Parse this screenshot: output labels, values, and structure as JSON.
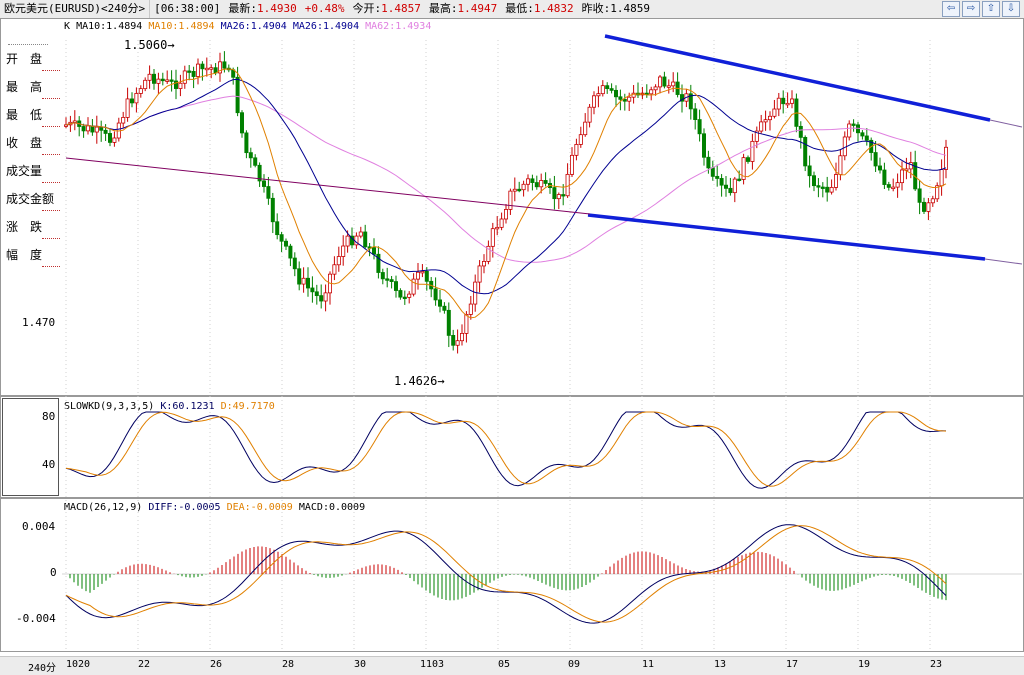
{
  "header": {
    "title": "欧元美元(EURUSD)<240分>",
    "time": "[06:38:00]",
    "latest_label": "最新:",
    "latest_value": "1.4930",
    "change": "+0.48%",
    "open_label": "今开:",
    "open_value": "1.4857",
    "high_label": "最高:",
    "high_value": "1.4947",
    "low_label": "最低:",
    "low_value": "1.4832",
    "prev_label": "昨收:",
    "prev_value": "1.4859"
  },
  "nav_icons": [
    "back-arrow-icon",
    "forward-arrow-icon",
    "up-arrow-icon",
    "down-arrow-icon"
  ],
  "left_labels": [
    "开　盘",
    "最　高",
    "最　低",
    "收　盘",
    "成交量",
    "成交金额",
    "涨　跌",
    "幅　度"
  ],
  "main_legend": {
    "k": "K",
    "ma10a": "MA10:1.4894",
    "ma10b": "MA10:1.4894",
    "ma26a": "MA26:1.4904",
    "ma26b": "MA26:1.4904",
    "ma62": "MA62:1.4934"
  },
  "annotations": {
    "high": "1.5060→",
    "low": "1.4626→",
    "price_tick": "1.470"
  },
  "kd_panel": {
    "legend_name": "SLOWKD(9,3,3,5)",
    "k": "K:60.1231",
    "d": "D:49.7170",
    "ticks": [
      "80",
      "40"
    ]
  },
  "macd_panel": {
    "legend_name": "MACD(26,12,9)",
    "diff": "DIFF:-0.0005",
    "dea": "DEA:-0.0009",
    "macd": "MACD:0.0009",
    "ticks": [
      "0.004",
      "0",
      "-0.004"
    ]
  },
  "x_axis": {
    "period": "240分",
    "dates": [
      "1020",
      "22",
      "26",
      "28",
      "30",
      "1103",
      "05",
      "09",
      "11",
      "13",
      "17",
      "19",
      "23"
    ]
  },
  "colors": {
    "up": "#c80000",
    "down": "#008000",
    "ma10": "#e08000",
    "ma26": "#000090",
    "ma62": "#e080e0",
    "trendline": "#1020d8"
  }
}
